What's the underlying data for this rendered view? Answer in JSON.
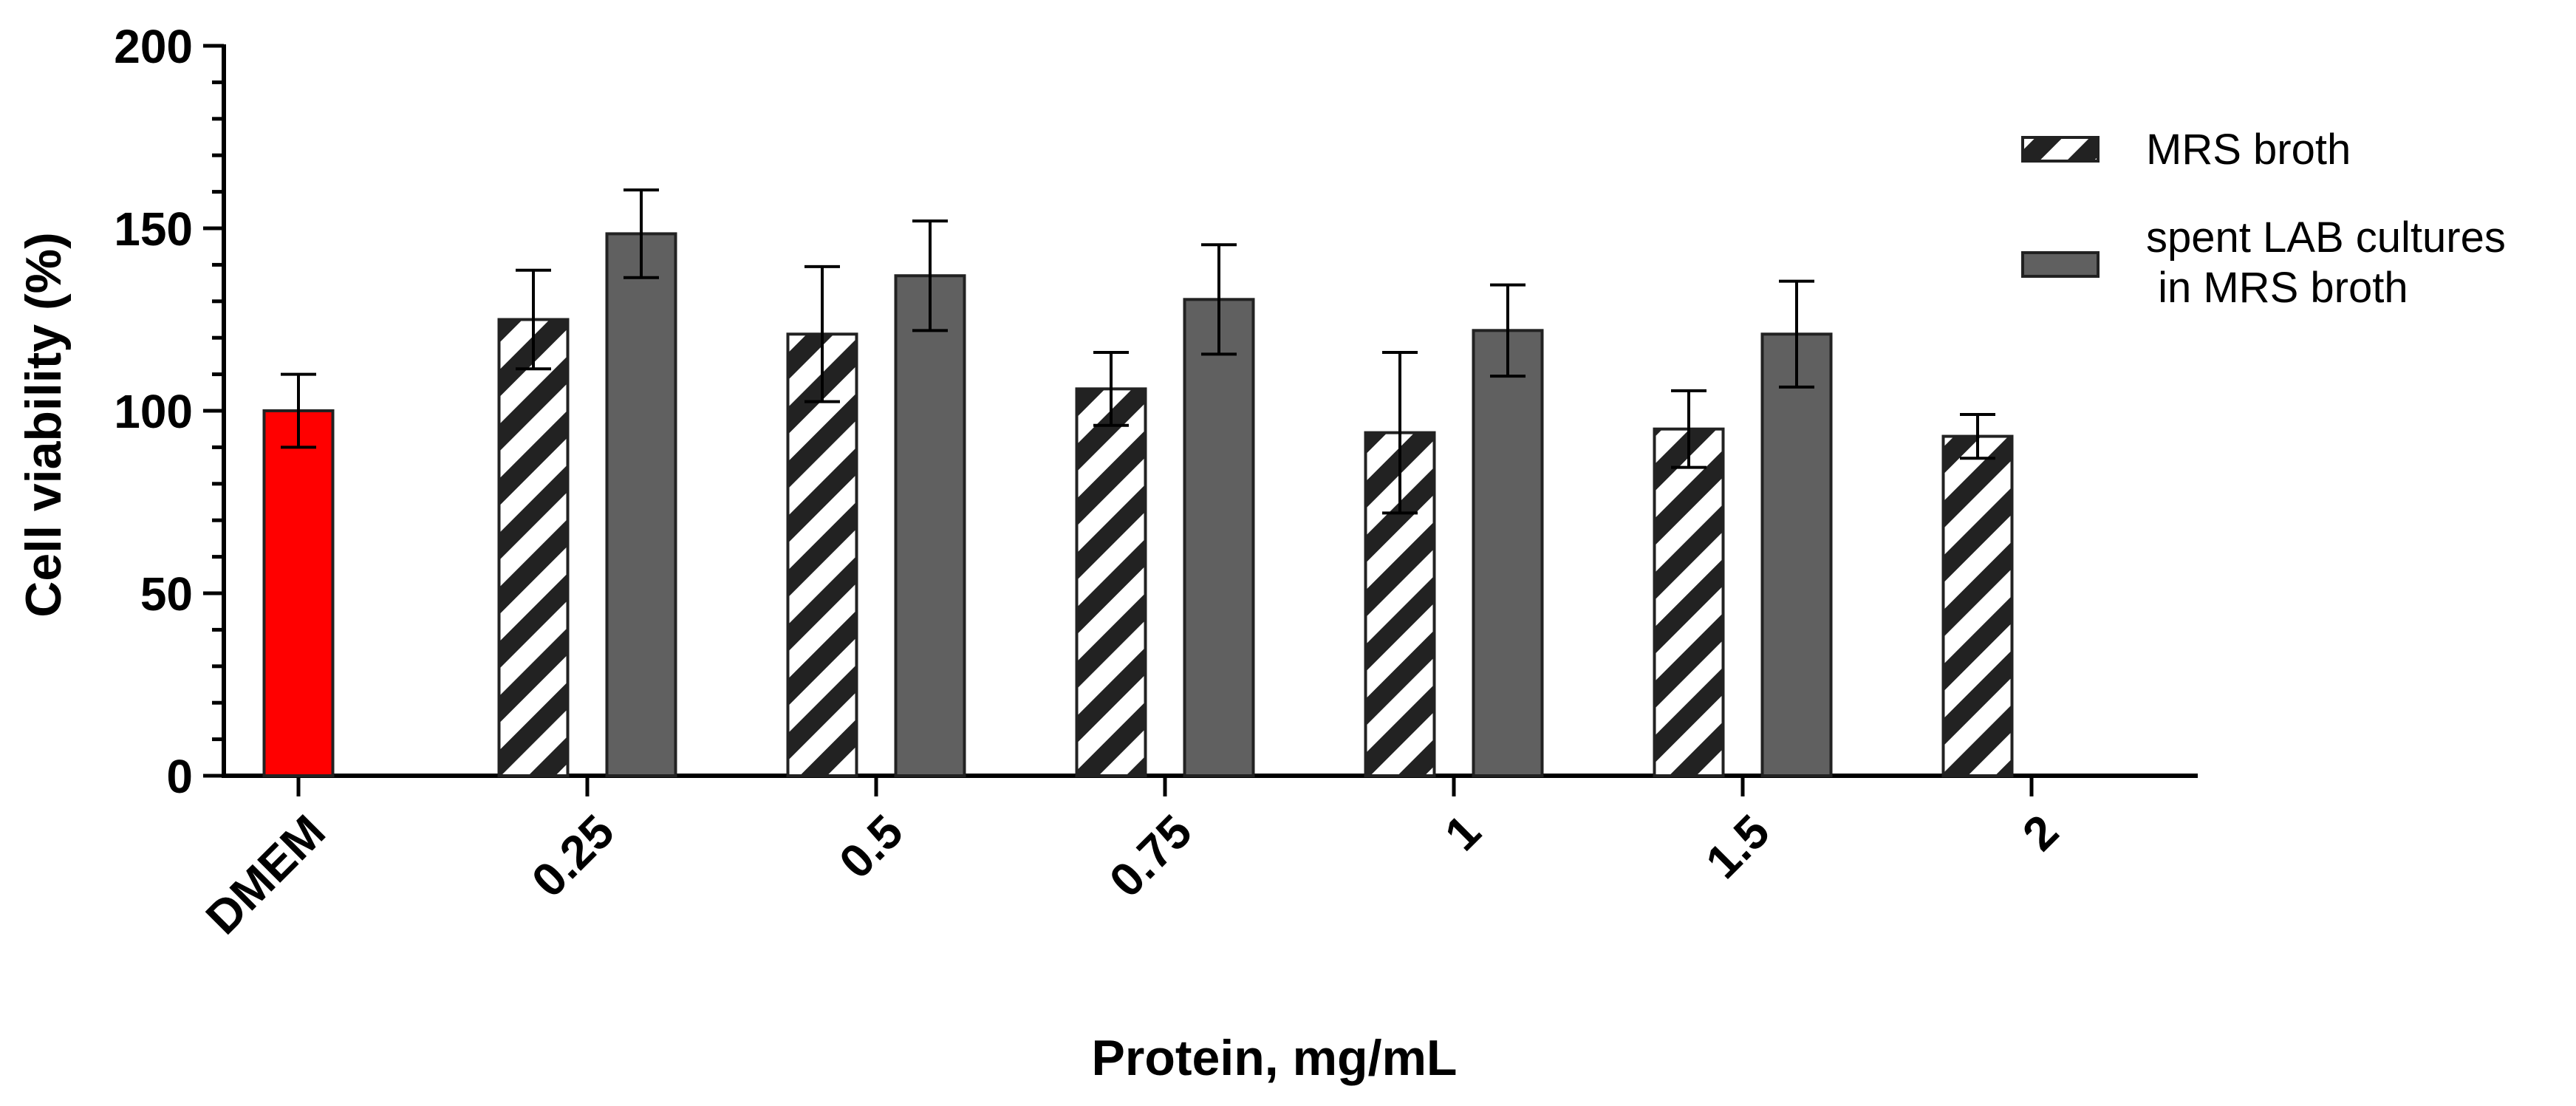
{
  "chart_data": {
    "type": "bar",
    "title": "",
    "xlabel": "Protein, mg/mL",
    "ylabel": "Cell viability  (%)",
    "ylim": [
      0,
      200
    ],
    "yticks": [
      "0",
      "50",
      "100",
      "150",
      "200"
    ],
    "categories": [
      "DMEM",
      "0.25",
      "0.5",
      "0.75",
      "1",
      "1.5",
      "2"
    ],
    "control": {
      "category": "DMEM",
      "value": 100,
      "error": 10,
      "color": "#ff0000"
    },
    "series": [
      {
        "name": "MRS broth",
        "style": "hatched",
        "color": "#222222",
        "values": [
          null,
          125,
          121,
          106,
          94,
          95,
          93
        ],
        "errors": [
          null,
          13.5,
          18.5,
          10,
          22,
          10.5,
          6
        ]
      },
      {
        "name": "spent LAB cultures\n in MRS broth",
        "style": "solid",
        "color": "#606060",
        "values": [
          null,
          148.5,
          137,
          130.5,
          122,
          121,
          null
        ],
        "errors": [
          null,
          12,
          15,
          15,
          12.5,
          14.5,
          null
        ]
      }
    ],
    "legend": "top-right",
    "grid": false
  }
}
